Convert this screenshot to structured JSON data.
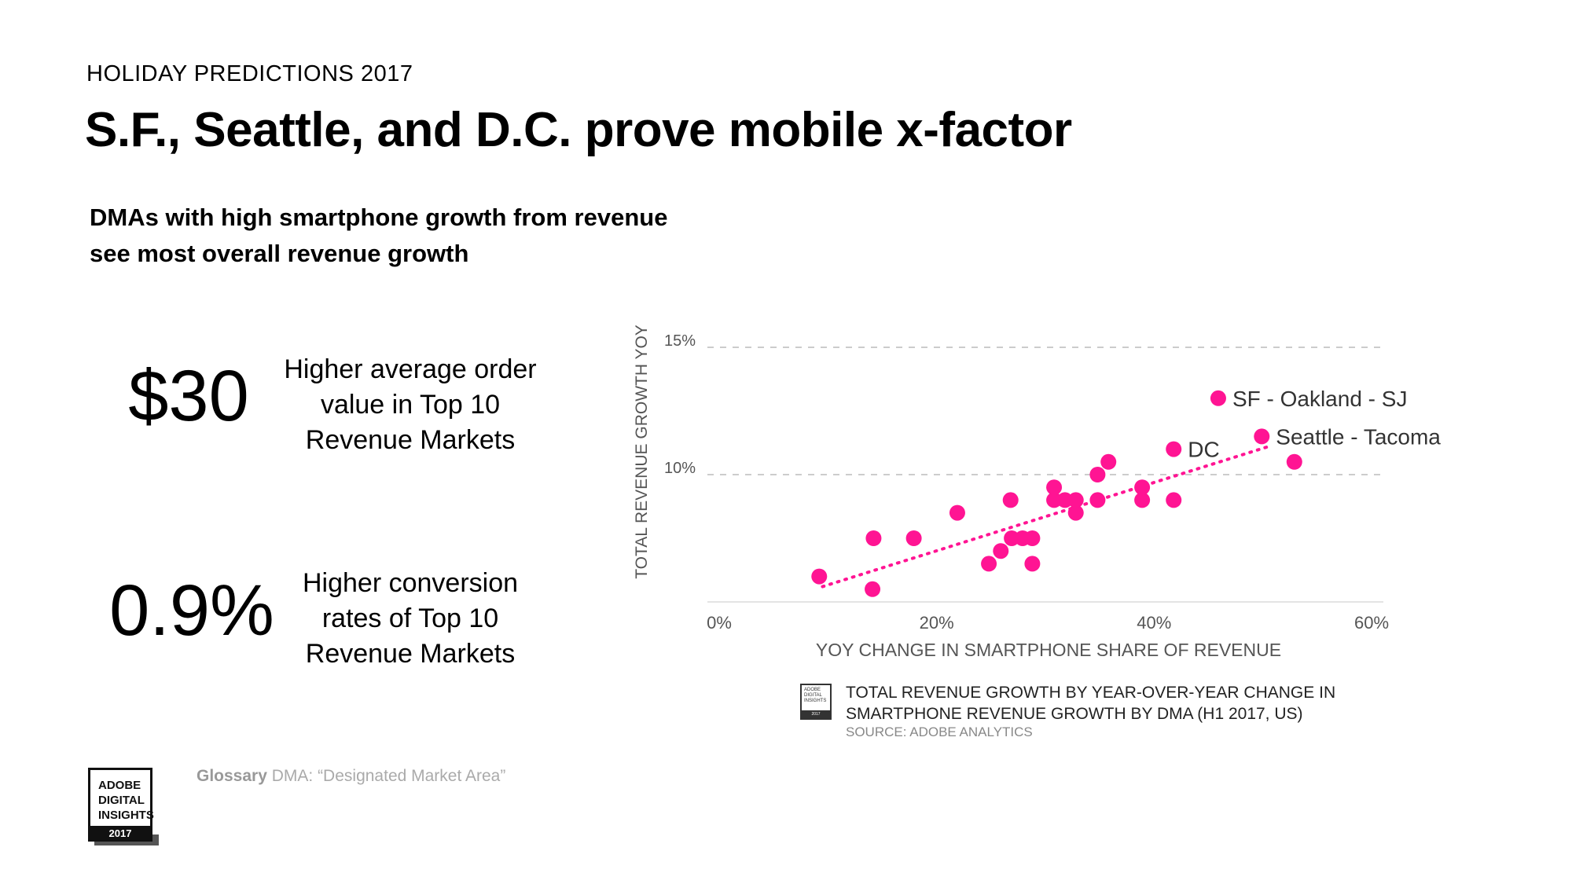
{
  "header": {
    "eyebrow": "HOLIDAY PREDICTIONS 2017",
    "title": "S.F., Seattle, and D.C. prove mobile x-factor",
    "subtitle_line1": "DMAs with high smartphone growth from revenue",
    "subtitle_line2": "see most overall revenue growth"
  },
  "stats": [
    {
      "value": "$30",
      "desc_line1": "Higher average order",
      "desc_line2": "value in Top 10",
      "desc_line3": "Revenue Markets"
    },
    {
      "value": "0.9%",
      "desc_line1": "Higher conversion",
      "desc_line2": "rates of Top 10",
      "desc_line3": "Revenue Markets"
    }
  ],
  "chart_data": {
    "type": "scatter",
    "xlabel": "YOY CHANGE IN SMARTPHONE SHARE OF REVENUE",
    "ylabel": "TOTAL REVENUE GROWTH  YOY",
    "xlim": [
      0,
      60
    ],
    "ylim": [
      5,
      15
    ],
    "x_ticks": [
      {
        "value": 0,
        "label": "0%"
      },
      {
        "value": 20,
        "label": "20%"
      },
      {
        "value": 40,
        "label": "40%"
      },
      {
        "value": 60,
        "label": "60%"
      }
    ],
    "y_ticks": [
      {
        "value": 15,
        "label": "15%"
      },
      {
        "value": 10,
        "label": "10%"
      }
    ],
    "grid": "horizontal dashed",
    "points": [
      {
        "x": 9.2,
        "y": 6.0
      },
      {
        "x": 14.1,
        "y": 5.5
      },
      {
        "x": 14.2,
        "y": 7.5
      },
      {
        "x": 17.9,
        "y": 7.5
      },
      {
        "x": 21.9,
        "y": 8.5
      },
      {
        "x": 24.8,
        "y": 6.5
      },
      {
        "x": 25.9,
        "y": 7.0
      },
      {
        "x": 26.9,
        "y": 7.5
      },
      {
        "x": 26.8,
        "y": 9.0
      },
      {
        "x": 27.9,
        "y": 7.5
      },
      {
        "x": 28.8,
        "y": 7.5
      },
      {
        "x": 28.8,
        "y": 6.5
      },
      {
        "x": 30.8,
        "y": 9.0
      },
      {
        "x": 30.8,
        "y": 9.5
      },
      {
        "x": 31.8,
        "y": 9.0
      },
      {
        "x": 32.8,
        "y": 8.5
      },
      {
        "x": 32.8,
        "y": 9.0
      },
      {
        "x": 34.8,
        "y": 9.0
      },
      {
        "x": 34.8,
        "y": 10.0
      },
      {
        "x": 35.8,
        "y": 10.5
      },
      {
        "x": 38.9,
        "y": 9.0
      },
      {
        "x": 38.9,
        "y": 9.5
      },
      {
        "x": 41.8,
        "y": 9.0
      },
      {
        "x": 41.8,
        "y": 11.0,
        "label": "DC"
      },
      {
        "x": 45.9,
        "y": 13.0,
        "label": "SF - Oakland - SJ"
      },
      {
        "x": 49.9,
        "y": 11.5,
        "label": "Seattle - Tacoma"
      },
      {
        "x": 52.9,
        "y": 10.5
      }
    ],
    "trendline": {
      "style": "dotted",
      "from": {
        "x": 9.5,
        "y": 5.6
      },
      "to": {
        "x": 50.5,
        "y": 11.1
      }
    },
    "point_color": "#ff1493",
    "grid_color": "#bbbbbb"
  },
  "chart_note": {
    "line1": "TOTAL REVENUE GROWTH BY YEAR-OVER-YEAR CHANGE IN",
    "line2": "SMARTPHONE REVENUE GROWTH BY DMA (H1 2017, US)",
    "source": "SOURCE: ADOBE ANALYTICS",
    "badge_l1": "ADOBE",
    "badge_l2": "DIGITAL",
    "badge_l3": "INSIGHTS",
    "badge_year": "2017"
  },
  "footer": {
    "logo_l1": "ADOBE",
    "logo_l2": "DIGITAL",
    "logo_l3": "INSIGHTS",
    "logo_year": "2017",
    "glossary_label": "Glossary",
    "glossary_text": "DMA: “Designated Market Area”"
  }
}
